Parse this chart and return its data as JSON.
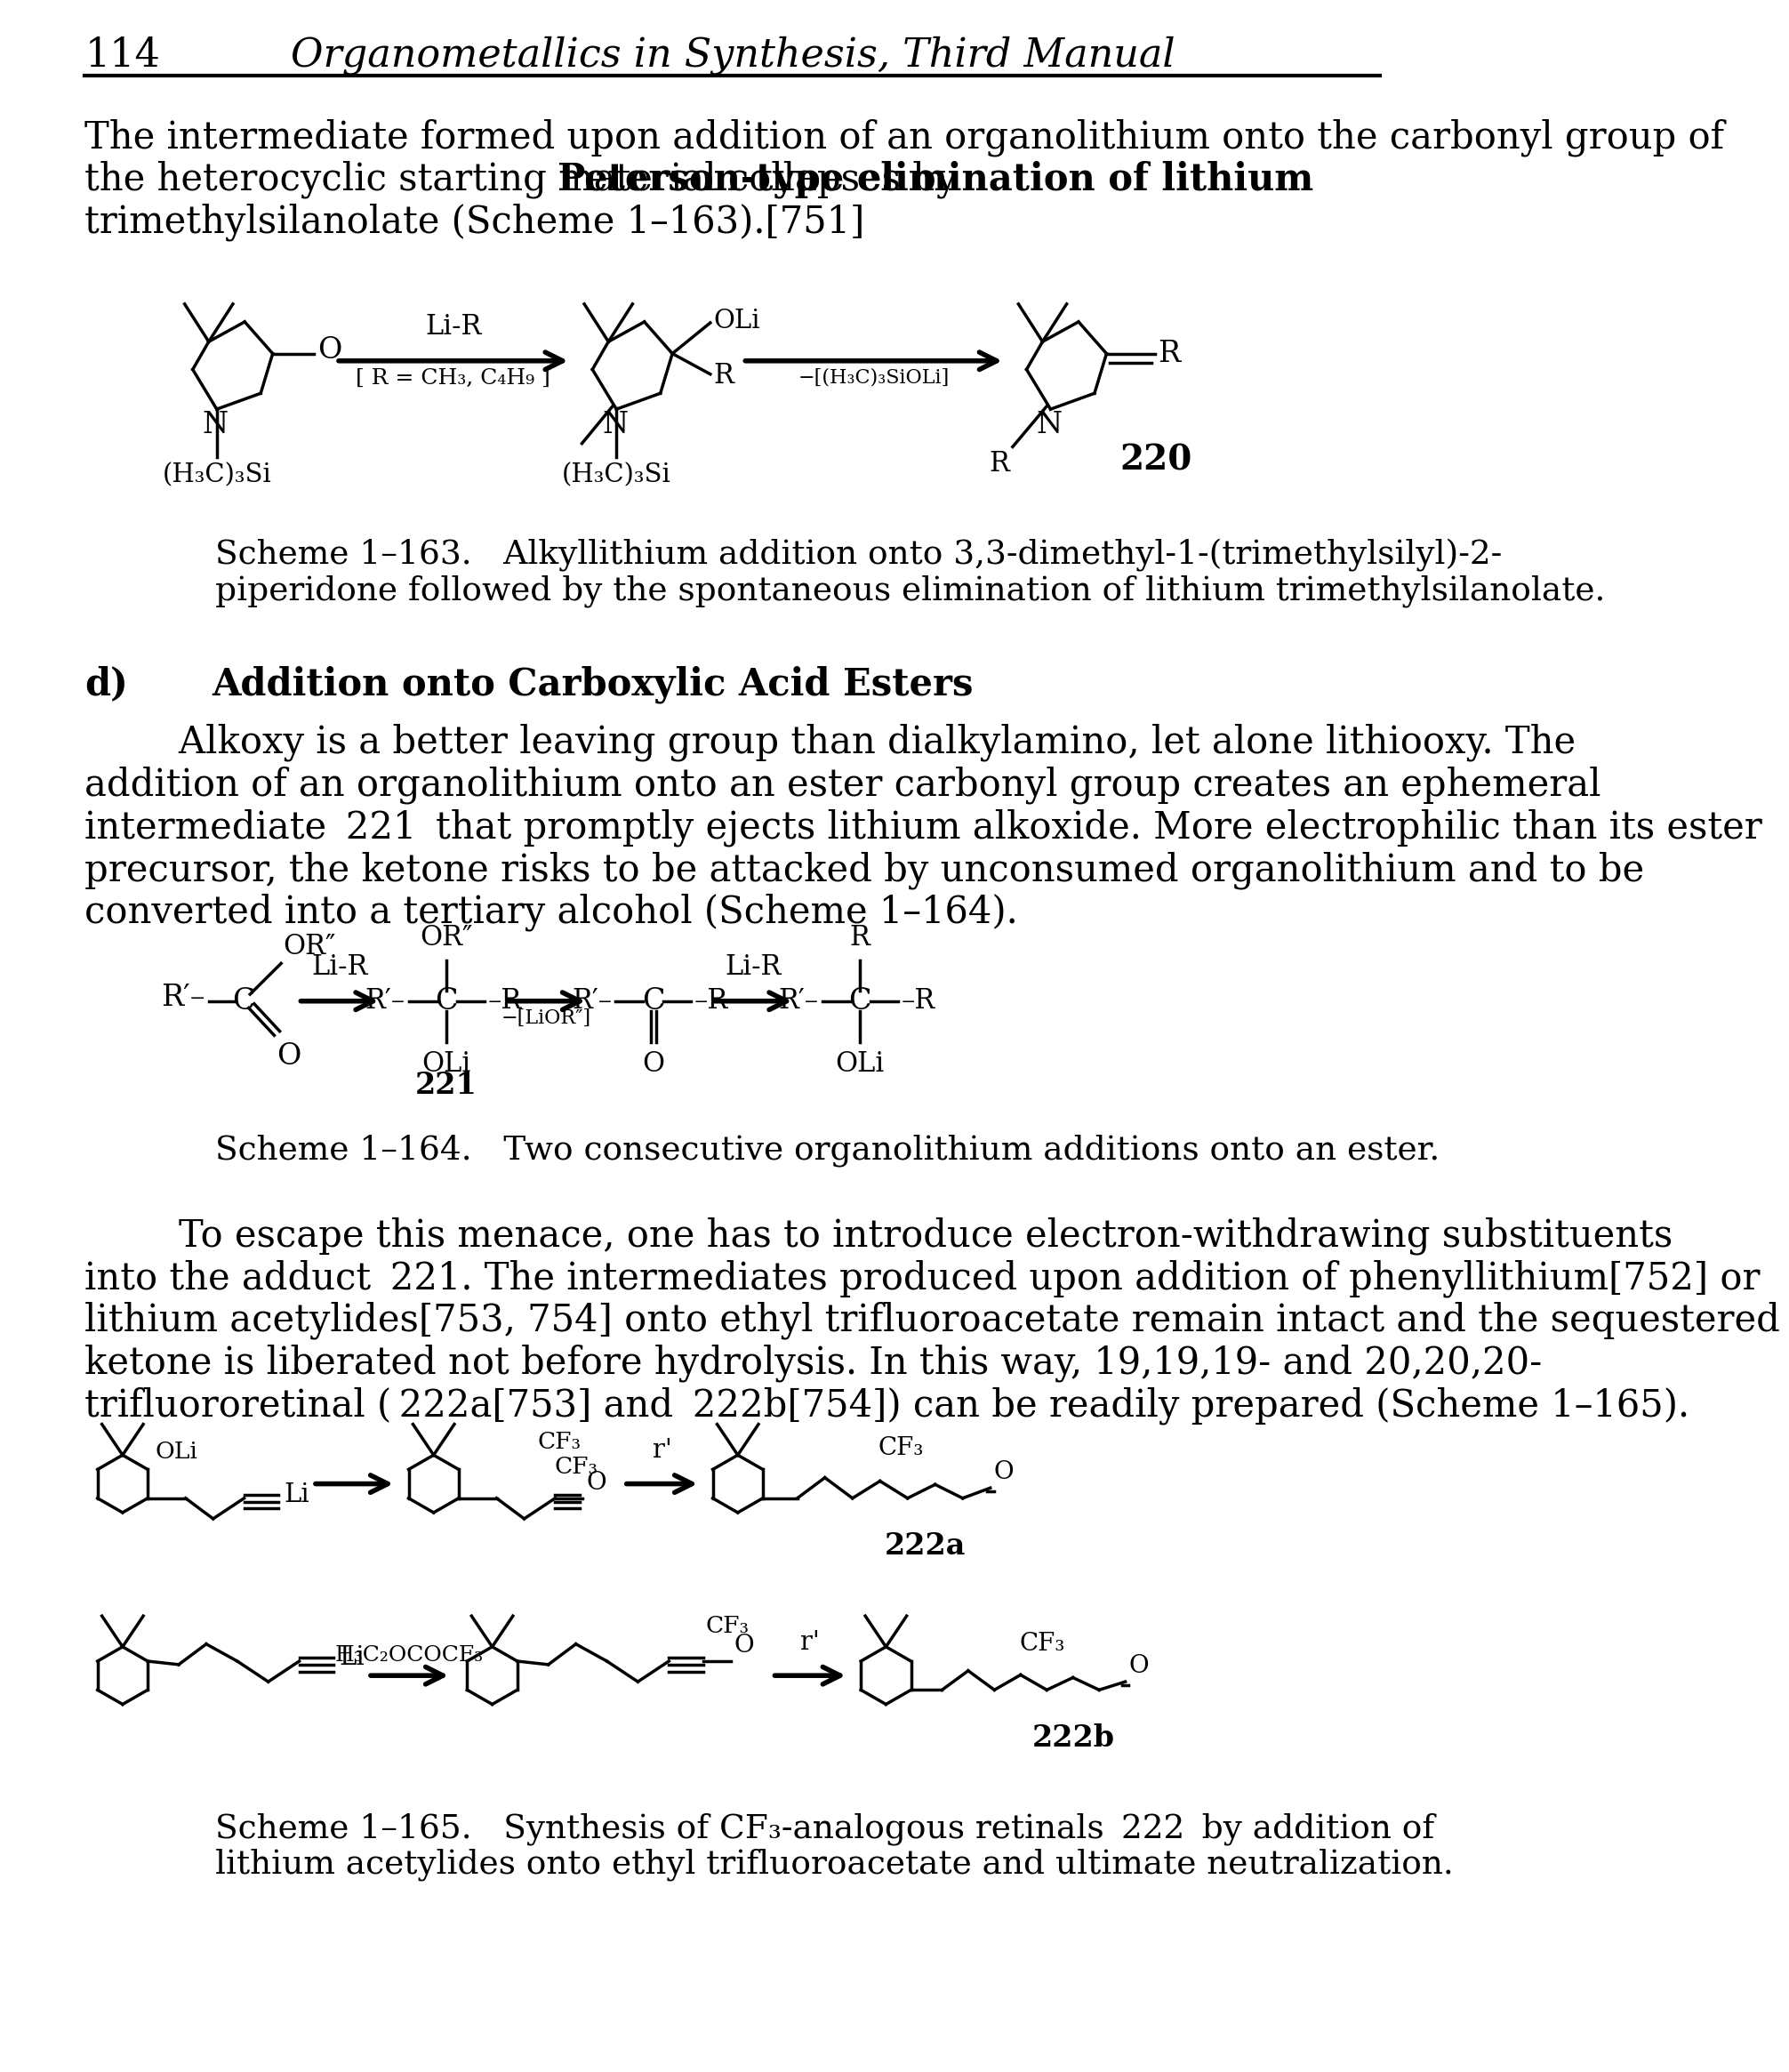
{
  "page_number": "114",
  "header_title": "Organometallics in Synthesis, Third Manual",
  "bg": "#ffffff",
  "intro_line1": "The intermediate formed upon addition of an organolithium onto the carbonyl group of",
  "intro_line2_a": "the heterocyclic starting material collapses by ",
  "intro_line2_b": "Peterson-type elimination of lithium",
  "intro_line3": "trimethylsilanolate (Scheme 1–163).[751]",
  "scheme163_cap1": "Scheme 1–163.   Alkyllithium addition onto 3,3-dimethyl-1-(trimethylsilyl)-2-",
  "scheme163_cap2": "piperidone followed by the spontaneous elimination of lithium trimethylsilanolate.",
  "sec_d_label": "d)",
  "sec_d_title": "Addition onto Carboxylic Acid Esters",
  "sec_d_p1": "        Alkoxy is a better leaving group than dialkylamino, let alone lithiooxy. The",
  "sec_d_p2": "addition of an organolithium onto an ester carbonyl group creates an ephemeral",
  "sec_d_p3": "intermediate  221  that promptly ejects lithium alkoxide. More electrophilic than its ester",
  "sec_d_p4": "precursor, the ketone risks to be attacked by unconsumed organolithium and to be",
  "sec_d_p5": "converted into a tertiary alcohol (Scheme 1–164).",
  "scheme164_cap": "Scheme 1–164.   Two consecutive organolithium additions onto an ester.",
  "p165_1": "        To escape this menace, one has to introduce electron-withdrawing substituents",
  "p165_2": "into the adduct  221. The intermediates produced upon addition of phenyllithium[752] or",
  "p165_3": "lithium acetylides[753, 754] onto ethyl trifluoroacetate remain intact and the sequestered",
  "p165_4": "ketone is liberated not before hydrolysis. In this way, 19,19,19- and 20,20,20-",
  "p165_5": "trifluororetinal ( 222a[753] and  222b[754]) can be readily prepared (Scheme 1–165).",
  "scheme165_cap1": "Scheme 1–165.   Synthesis of CF₃-analogous retinals  222  by addition of",
  "scheme165_cap2": "lithium acetylides onto ethyl trifluoroacetate and ultimate neutralization."
}
